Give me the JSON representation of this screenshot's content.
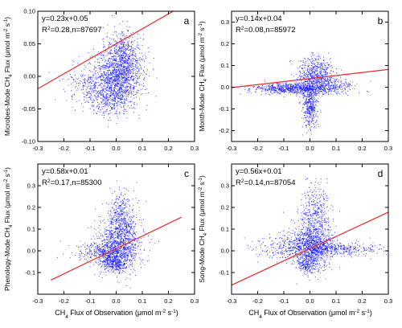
{
  "figure": {
    "x_title_parts": [
      "CH",
      "4",
      " Flux of Observation (μmol m",
      "-2",
      " s",
      "-1",
      ")"
    ]
  },
  "chart_data": [
    {
      "type": "scatter",
      "panel_letter": "a",
      "ylabel_parts": [
        "Microbes-Mode CH",
        "4",
        " Flux (μmol m",
        "-2",
        " s",
        "-1",
        ")"
      ],
      "eq_text": "y=0.23x+0.05",
      "stats_parts": [
        "R",
        "2",
        "=0.28,n=87697"
      ],
      "slope": 0.23,
      "intercept": 0.05,
      "r2": 0.28,
      "n": 87697,
      "xlim": [
        -0.3,
        0.3
      ],
      "ylim": [
        -0.1,
        0.1
      ],
      "xticks": [
        -0.3,
        -0.2,
        -0.1,
        0.0,
        0.1,
        0.2,
        0.3
      ],
      "xtick_labels": [
        "-0.3",
        "-0.2",
        "-0.1",
        "0.0",
        "0.1",
        "0.2",
        "0.3"
      ],
      "yticks": [
        -0.1,
        -0.05,
        0.0,
        0.05,
        0.1
      ],
      "ytick_labels": [
        "-0.10",
        "-0.05",
        "0.00",
        "0.05",
        "0.10"
      ],
      "clouds": [
        {
          "cx": 0.01,
          "cy": 0.0,
          "sx": 0.045,
          "sy": 0.022,
          "count": 1100
        },
        {
          "cx": -0.07,
          "cy": -0.012,
          "sx": 0.06,
          "sy": 0.018,
          "count": 420
        },
        {
          "cx": 0.03,
          "cy": 0.035,
          "sx": 0.03,
          "sy": 0.018,
          "count": 420
        },
        {
          "cx": -0.02,
          "cy": -0.04,
          "sx": 0.04,
          "sy": 0.012,
          "count": 240
        }
      ],
      "marker_color": "#1a1aff",
      "fit_color": "#e8272a",
      "fit_x_range": [
        -0.3,
        0.3
      ]
    },
    {
      "type": "scatter",
      "panel_letter": "b",
      "ylabel_parts": [
        "Month-Mode CH",
        "4",
        " Flux (μmol m",
        "-2",
        " s",
        "-1",
        ")"
      ],
      "eq_text": "y=0.14x+0.04",
      "stats_parts": [
        "R",
        "2",
        "=0.08,n=85972"
      ],
      "slope": 0.14,
      "intercept": 0.04,
      "r2": 0.08,
      "n": 85972,
      "xlim": [
        -0.3,
        0.3
      ],
      "ylim": [
        -0.25,
        0.35
      ],
      "xticks": [
        -0.3,
        -0.2,
        -0.1,
        0.0,
        0.1,
        0.2,
        0.3
      ],
      "xtick_labels": [
        "-0.3",
        "-0.2",
        "-0.1",
        "0.0",
        "0.1",
        "0.2",
        "0.3"
      ],
      "yticks": [
        -0.2,
        -0.1,
        0.0,
        0.1,
        0.2,
        0.3
      ],
      "ytick_labels": [
        "-0.2",
        "-0.1",
        "0.0",
        "0.1",
        "0.2",
        "0.3"
      ],
      "clouds": [
        {
          "cx": -0.05,
          "cy": -0.005,
          "sx": 0.08,
          "sy": 0.012,
          "count": 800
        },
        {
          "cx": 0.02,
          "cy": 0.06,
          "sx": 0.035,
          "sy": 0.04,
          "count": 550
        },
        {
          "cx": 0.0,
          "cy": -0.08,
          "sx": 0.015,
          "sy": 0.05,
          "count": 420
        },
        {
          "cx": 0.08,
          "cy": 0.01,
          "sx": 0.05,
          "sy": 0.02,
          "count": 220
        }
      ],
      "marker_color": "#1a1aff",
      "fit_color": "#e8272a",
      "fit_x_range": [
        -0.3,
        0.3
      ]
    },
    {
      "type": "scatter",
      "panel_letter": "c",
      "ylabel_parts": [
        "Phenology-Mode CH",
        "4",
        " Flux (μmol m",
        "-2",
        " s",
        "-1",
        ")"
      ],
      "eq_text": "y=0.58x+0.01",
      "stats_parts": [
        "R",
        "2",
        "=0.17,n=85300"
      ],
      "slope": 0.58,
      "intercept": 0.01,
      "r2": 0.17,
      "n": 85300,
      "xlim": [
        -0.3,
        0.3
      ],
      "ylim": [
        -0.2,
        0.4
      ],
      "xticks": [
        -0.3,
        -0.2,
        -0.1,
        0.0,
        0.1,
        0.2,
        0.3
      ],
      "xtick_labels": [
        "-0.3",
        "-0.2",
        "-0.1",
        "0.0",
        "0.1",
        "0.2",
        "0.3"
      ],
      "yticks": [
        -0.1,
        0.0,
        0.1,
        0.2,
        0.3
      ],
      "ytick_labels": [
        "-0.1",
        "0.0",
        "0.1",
        "0.2",
        "0.3"
      ],
      "clouds": [
        {
          "cx": 0.01,
          "cy": 0.03,
          "sx": 0.04,
          "sy": 0.06,
          "count": 1000
        },
        {
          "cx": 0.02,
          "cy": 0.15,
          "sx": 0.025,
          "sy": 0.06,
          "count": 380
        },
        {
          "cx": -0.01,
          "cy": -0.05,
          "sx": 0.025,
          "sy": 0.025,
          "count": 380
        },
        {
          "cx": -0.06,
          "cy": 0.0,
          "sx": 0.05,
          "sy": 0.025,
          "count": 260
        }
      ],
      "marker_color": "#1a1aff",
      "fit_color": "#e8272a",
      "fit_x_range": [
        -0.25,
        0.25
      ]
    },
    {
      "type": "scatter",
      "panel_letter": "d",
      "ylabel_parts": [
        "Song-Mode CH",
        "4",
        " Flux (μmol m",
        "-2",
        " s",
        "-1",
        ")"
      ],
      "eq_text": "y=0.56x+0.01",
      "stats_parts": [
        "R",
        "2",
        "=0.14,n=87054"
      ],
      "slope": 0.56,
      "intercept": 0.01,
      "r2": 0.14,
      "n": 87054,
      "xlim": [
        -0.3,
        0.3
      ],
      "ylim": [
        -0.2,
        0.4
      ],
      "xticks": [
        -0.3,
        -0.2,
        -0.1,
        0.0,
        0.1,
        0.2,
        0.3
      ],
      "xtick_labels": [
        "-0.3",
        "-0.2",
        "-0.1",
        "0.0",
        "0.1",
        "0.2",
        "0.3"
      ],
      "yticks": [
        -0.1,
        0.0,
        0.1,
        0.2,
        0.3
      ],
      "ytick_labels": [
        "-0.1",
        "0.0",
        "0.1",
        "0.2",
        "0.3"
      ],
      "clouds": [
        {
          "cx": 0.01,
          "cy": 0.03,
          "sx": 0.04,
          "sy": 0.055,
          "count": 900
        },
        {
          "cx": 0.02,
          "cy": 0.17,
          "sx": 0.03,
          "sy": 0.07,
          "count": 380
        },
        {
          "cx": 0.1,
          "cy": 0.01,
          "sx": 0.09,
          "sy": 0.015,
          "count": 380
        },
        {
          "cx": -0.08,
          "cy": 0.02,
          "sx": 0.06,
          "sy": 0.03,
          "count": 300
        },
        {
          "cx": -0.01,
          "cy": -0.06,
          "sx": 0.02,
          "sy": 0.02,
          "count": 200
        }
      ],
      "marker_color": "#1a1aff",
      "fit_color": "#e8272a",
      "fit_x_range": [
        -0.3,
        0.3
      ]
    }
  ]
}
